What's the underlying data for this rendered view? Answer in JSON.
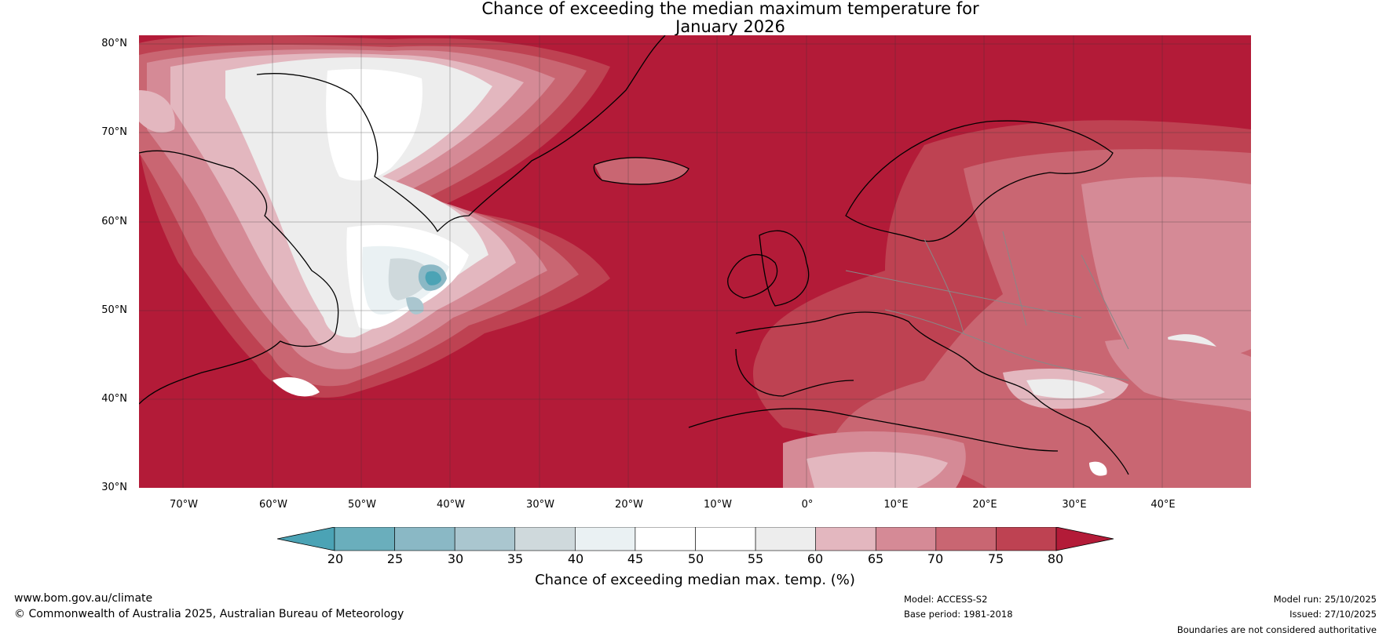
{
  "title_line1": "Chance of exceeding the median maximum temperature for",
  "title_line2": "January 2026",
  "map": {
    "lat_labels": [
      "80°N",
      "70°N",
      "60°N",
      "50°N",
      "40°N",
      "30°N"
    ],
    "lon_labels": [
      "70°W",
      "60°W",
      "50°W",
      "40°W",
      "30°W",
      "20°W",
      "10°W",
      "0°",
      "10°E",
      "20°E",
      "30°E",
      "40°E"
    ],
    "extent": {
      "lon_min": -75,
      "lon_max": 50,
      "lat_min": 30,
      "lat_max": 81
    },
    "colors": {
      "lt20": "#4ba3b5",
      "b20_25": "#6aaebc",
      "b25_30": "#8ab8c5",
      "b30_35": "#aac6cf",
      "b35_40": "#cfd9dc",
      "b40_45": "#eaf1f3",
      "b45_50": "#ffffff",
      "b50_55": "#ffffff",
      "b55_60": "#ededed",
      "b60_65": "#e3b7bf",
      "b65_70": "#d58a96",
      "b70_75": "#c96672",
      "b75_80": "#be4252",
      "gt80": "#b31b38"
    }
  },
  "colorbar": {
    "ticks": [
      "20",
      "25",
      "30",
      "35",
      "40",
      "45",
      "50",
      "55",
      "60",
      "65",
      "70",
      "75",
      "80"
    ],
    "segments": [
      "#6aaebc",
      "#8ab8c5",
      "#aac6cf",
      "#cfd9dc",
      "#eaf1f3",
      "#ffffff",
      "#ffffff",
      "#ededed",
      "#e3b7bf",
      "#d58a96",
      "#c96672",
      "#be4252"
    ],
    "low_color": "#4ba3b5",
    "high_color": "#b31b38",
    "label": "Chance of exceeding median max. temp. (%)"
  },
  "footer": {
    "website": "www.bom.gov.au/climate",
    "copyright": "© Commonwealth of Australia 2025, Australian Bureau of Meteorology",
    "model": "Model: ACCESS-S2",
    "base_period": "Base period: 1981-2018",
    "model_run": "Model run: 25/10/2025",
    "issued": "Issued: 27/10/2025",
    "disclaimer": "Boundaries are not considered authoritative"
  }
}
